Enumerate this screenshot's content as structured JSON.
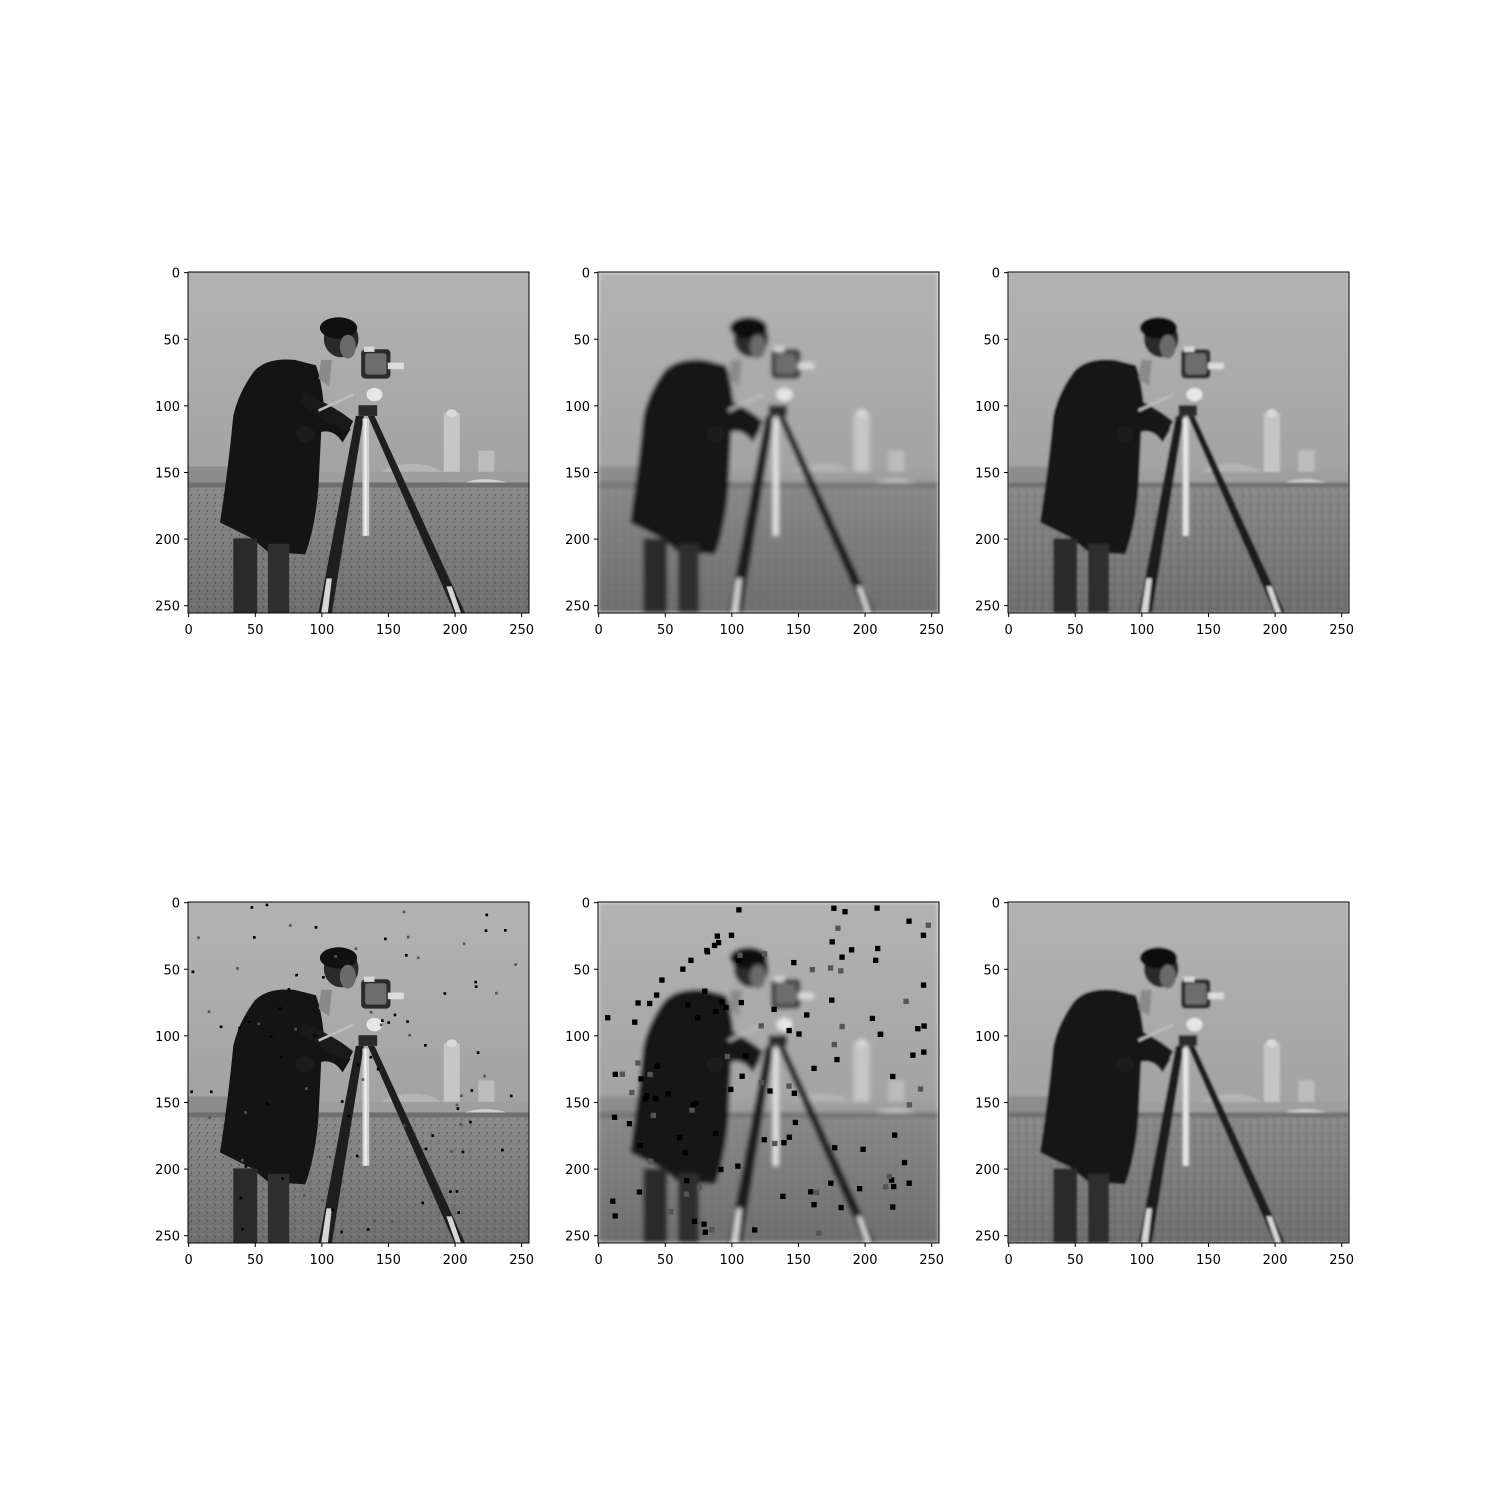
{
  "chart_data": [
    {
      "type": "image",
      "panel": "row-1-col-1",
      "description_role": "original",
      "noise_dots": 0,
      "blur": 0,
      "xlim": [
        0,
        255
      ],
      "ylim": [
        255,
        0
      ],
      "xticks": [
        0,
        50,
        100,
        150,
        200,
        250
      ],
      "yticks": [
        0,
        50,
        100,
        150,
        200,
        250
      ],
      "xtick_labels": [
        "0",
        "50",
        "100",
        "150",
        "200",
        "250"
      ],
      "ytick_labels": [
        "0",
        "50",
        "100",
        "150",
        "200",
        "250"
      ]
    },
    {
      "type": "image",
      "panel": "row-1-col-2",
      "description_role": "blurred",
      "noise_dots": 0,
      "blur": 1.6,
      "xlim": [
        0,
        255
      ],
      "ylim": [
        255,
        0
      ],
      "xticks": [
        0,
        50,
        100,
        150,
        200,
        250
      ],
      "yticks": [
        0,
        50,
        100,
        150,
        200,
        250
      ],
      "xtick_labels": [
        "0",
        "50",
        "100",
        "150",
        "200",
        "250"
      ],
      "ytick_labels": [
        "0",
        "50",
        "100",
        "150",
        "200",
        "250"
      ]
    },
    {
      "type": "image",
      "panel": "row-1-col-3",
      "description_role": "restored",
      "noise_dots": 0,
      "blur": 0.8,
      "xlim": [
        0,
        255
      ],
      "ylim": [
        255,
        0
      ],
      "xticks": [
        0,
        50,
        100,
        150,
        200,
        250
      ],
      "yticks": [
        0,
        50,
        100,
        150,
        200,
        250
      ],
      "xtick_labels": [
        "0",
        "50",
        "100",
        "150",
        "200",
        "250"
      ],
      "ytick_labels": [
        "0",
        "50",
        "100",
        "150",
        "200",
        "250"
      ]
    },
    {
      "type": "image",
      "panel": "row-2-col-1",
      "description_role": "sparse noise",
      "noise_dots": 90,
      "noise_size": 2,
      "blur": 0,
      "xlim": [
        0,
        255
      ],
      "ylim": [
        255,
        0
      ],
      "xticks": [
        0,
        50,
        100,
        150,
        200,
        250
      ],
      "yticks": [
        0,
        50,
        100,
        150,
        200,
        250
      ],
      "xtick_labels": [
        "0",
        "50",
        "100",
        "150",
        "200",
        "250"
      ],
      "ytick_labels": [
        "0",
        "50",
        "100",
        "150",
        "200",
        "250"
      ]
    },
    {
      "type": "image",
      "panel": "row-2-col-2",
      "description_role": "blurred with noise",
      "noise_dots": 130,
      "noise_size": 4,
      "blur": 1.6,
      "xlim": [
        0,
        255
      ],
      "ylim": [
        255,
        0
      ],
      "xticks": [
        0,
        50,
        100,
        150,
        200,
        250
      ],
      "yticks": [
        0,
        50,
        100,
        150,
        200,
        250
      ],
      "xtick_labels": [
        "0",
        "50",
        "100",
        "150",
        "200",
        "250"
      ],
      "ytick_labels": [
        "0",
        "50",
        "100",
        "150",
        "200",
        "250"
      ]
    },
    {
      "type": "image",
      "panel": "row-2-col-3",
      "description_role": "restored",
      "noise_dots": 0,
      "blur": 0.8,
      "xlim": [
        0,
        255
      ],
      "ylim": [
        255,
        0
      ],
      "xticks": [
        0,
        50,
        100,
        150,
        200,
        250
      ],
      "yticks": [
        0,
        50,
        100,
        150,
        200,
        250
      ],
      "xtick_labels": [
        "0",
        "50",
        "100",
        "150",
        "200",
        "250"
      ],
      "ytick_labels": [
        "0",
        "50",
        "100",
        "150",
        "200",
        "250"
      ]
    }
  ],
  "colors": {
    "sky": "#a8a8a8",
    "ground": "#7e7e7e",
    "figure": "#141414",
    "tripod": "#1e1e1e",
    "metal": "#d8d8d8",
    "buildings": "#bdbdbd",
    "noise": "#000000"
  }
}
